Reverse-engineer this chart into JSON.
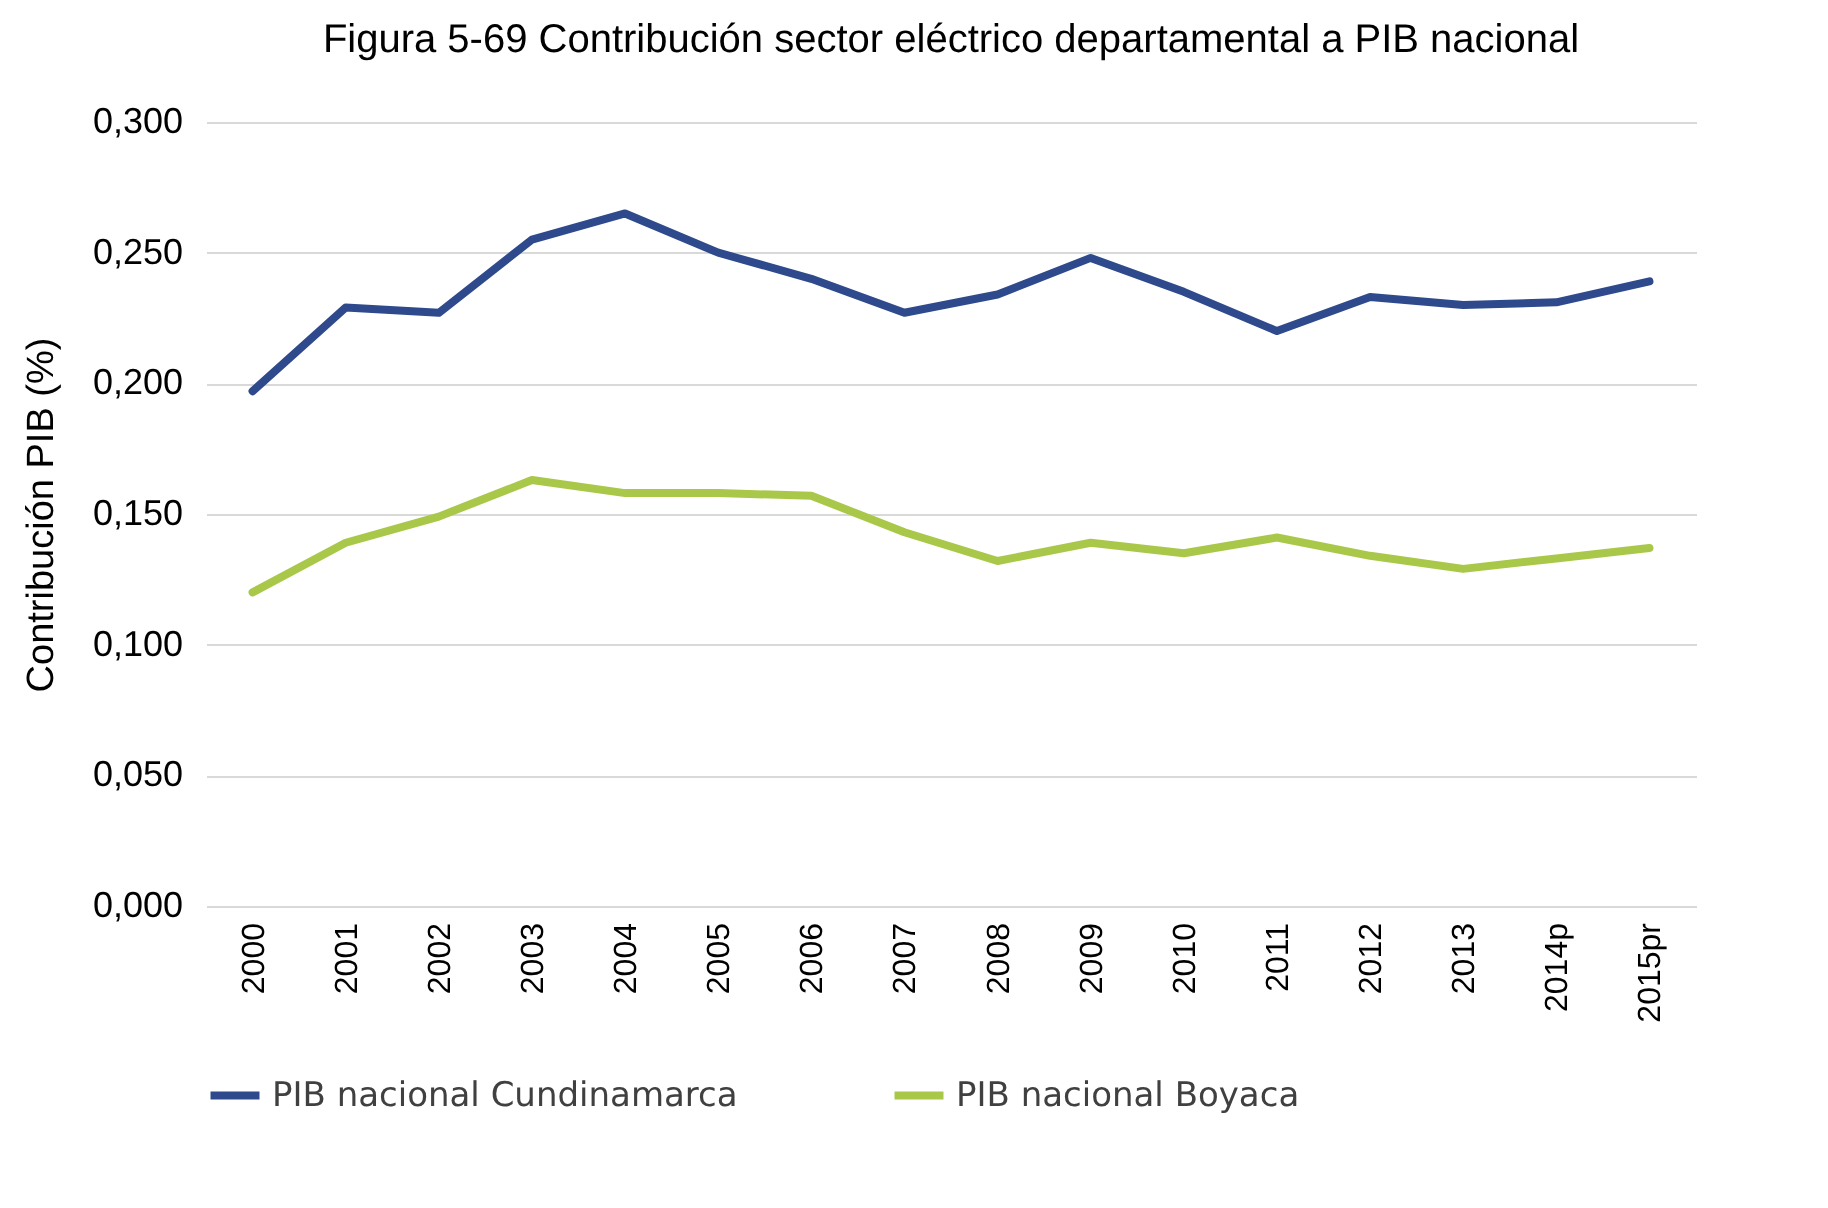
{
  "chart_data": {
    "type": "line",
    "title": "Figura 5-69 Contribución sector eléctrico departamental a PIB nacional",
    "ylabel": "Contribución PIB (%)",
    "categories": [
      "2000",
      "2001",
      "2002",
      "2003",
      "2004",
      "2005",
      "2006",
      "2007",
      "2008",
      "2009",
      "2010",
      "2011",
      "2012",
      "2013",
      "2014p",
      "2015pr"
    ],
    "series": [
      {
        "name": "PIB nacional Cundinamarca",
        "color": "#2e4a8c",
        "values": [
          0.197,
          0.229,
          0.227,
          0.255,
          0.265,
          0.25,
          0.24,
          0.227,
          0.234,
          0.248,
          0.235,
          0.22,
          0.233,
          0.23,
          0.231,
          0.239
        ]
      },
      {
        "name": "PIB nacional Boyaca",
        "color": "#a9c84a",
        "values": [
          0.12,
          0.139,
          0.149,
          0.163,
          0.158,
          0.158,
          0.157,
          0.143,
          0.132,
          0.139,
          0.135,
          0.141,
          0.134,
          0.129,
          0.133,
          0.137
        ]
      }
    ],
    "ylim": [
      0,
      0.3
    ],
    "yticks": [
      {
        "value": 0,
        "label": "0,000"
      },
      {
        "value": 0.05,
        "label": "0,050"
      },
      {
        "value": 0.1,
        "label": "0,100"
      },
      {
        "value": 0.15,
        "label": "0,150"
      },
      {
        "value": 0.2,
        "label": "0,200"
      },
      {
        "value": 0.25,
        "label": "0,250"
      },
      {
        "value": 0.3,
        "label": "0,300"
      }
    ],
    "grid": "y",
    "legend": "bottom",
    "marker": "none",
    "line_style": "solid"
  }
}
